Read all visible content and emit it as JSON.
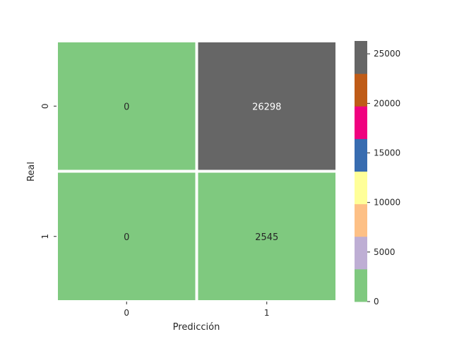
{
  "chart_data": {
    "type": "heatmap",
    "title": "",
    "xlabel": "Predicción",
    "ylabel": "Real",
    "x_categories": [
      "0",
      "1"
    ],
    "y_categories": [
      "0",
      "1"
    ],
    "values": [
      [
        0,
        26298
      ],
      [
        0,
        2545
      ]
    ],
    "colorbar": {
      "range": [
        0,
        26298
      ],
      "ticks": [
        0,
        5000,
        10000,
        15000,
        20000,
        25000
      ],
      "colors": [
        "#7fc97f",
        "#beaed4",
        "#fdc086",
        "#ffff99",
        "#386cb0",
        "#f0027f",
        "#bf5b17",
        "#666666"
      ]
    },
    "cell_text_colors": [
      [
        "#262626",
        "#ffffff"
      ],
      [
        "#262626",
        "#262626"
      ]
    ]
  }
}
